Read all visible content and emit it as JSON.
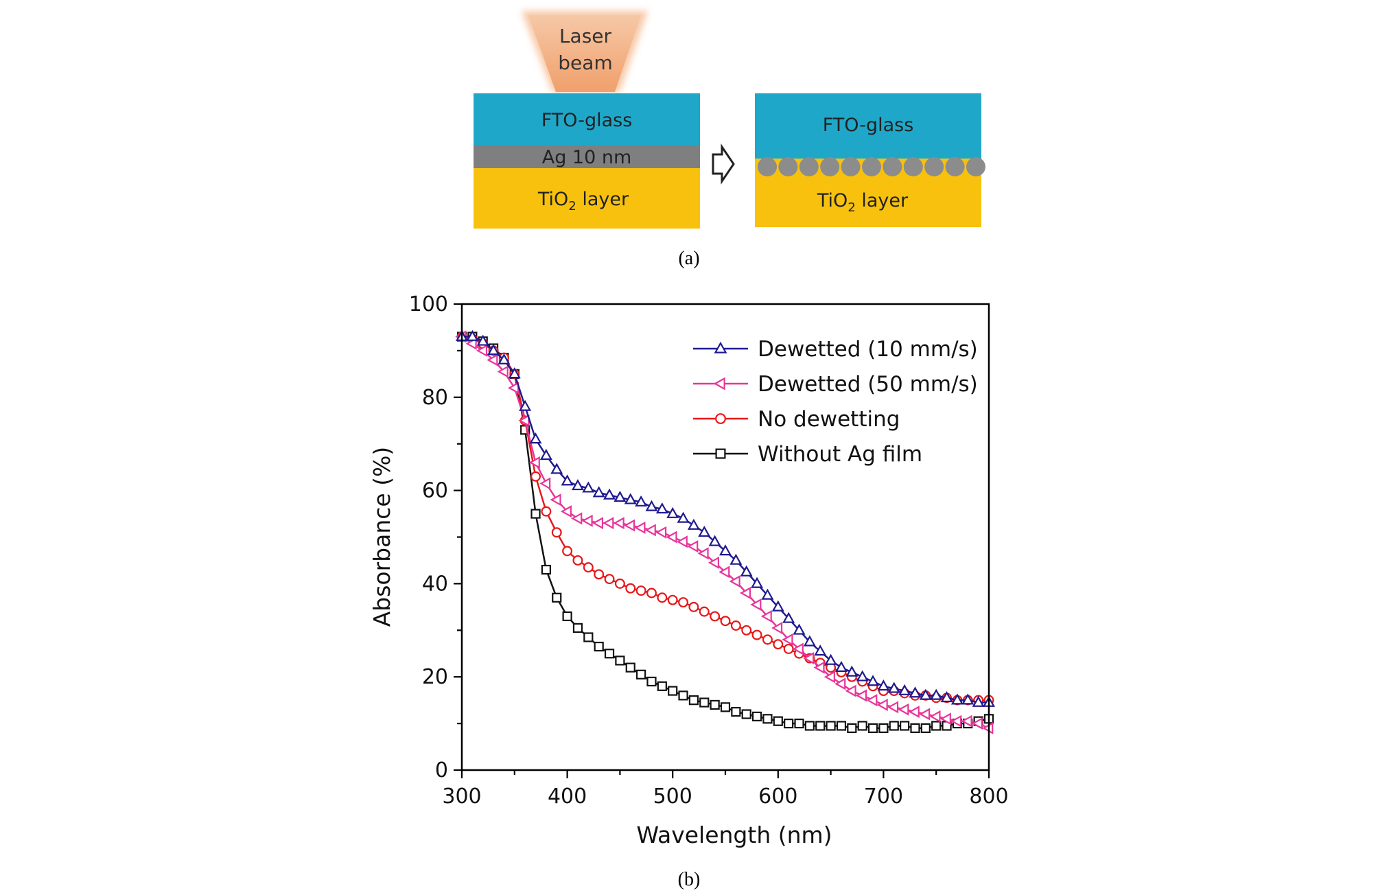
{
  "diagram": {
    "laser_label_line1": "Laser",
    "laser_label_line2": "beam",
    "before": {
      "fto_label": "FTO-glass",
      "ag_label": "Ag 10 nm",
      "tio2_label_main": "TiO",
      "tio2_label_sub": "2",
      "tio2_label_rest": " layer"
    },
    "after": {
      "fto_label": "FTO-glass",
      "tio2_label_main": "TiO",
      "tio2_label_sub": "2",
      "tio2_label_rest": " layer"
    },
    "caption": "(a)",
    "colors": {
      "fto": "#1fa7c9",
      "ag": "#7f7f7f",
      "tio2": "#f7c10d",
      "laser": "#f2a878",
      "particle": "#8c8c8c"
    }
  },
  "chart_data": {
    "type": "line",
    "title": "",
    "caption": "(b)",
    "xlabel": "Wavelength (nm)",
    "ylabel": "Absorbance (%)",
    "xlim": [
      300,
      800
    ],
    "ylim": [
      0,
      100
    ],
    "xticks": [
      300,
      400,
      500,
      600,
      700,
      800
    ],
    "yticks": [
      0,
      20,
      40,
      60,
      80,
      100
    ],
    "grid": false,
    "legend_position": "top-right",
    "x": [
      300,
      310,
      320,
      330,
      340,
      350,
      360,
      370,
      380,
      390,
      400,
      410,
      420,
      430,
      440,
      450,
      460,
      470,
      480,
      490,
      500,
      510,
      520,
      530,
      540,
      550,
      560,
      570,
      580,
      590,
      600,
      610,
      620,
      630,
      640,
      650,
      660,
      670,
      680,
      690,
      700,
      710,
      720,
      730,
      740,
      750,
      760,
      770,
      780,
      790,
      800
    ],
    "series": [
      {
        "name": "Dewetted (10 mm/s)",
        "color": "#1f1a8f",
        "marker": "triangle-up",
        "values": [
          93,
          93,
          92,
          90,
          88,
          85,
          78,
          71,
          67.5,
          64.5,
          62,
          61,
          60.5,
          59.5,
          59,
          58.5,
          58,
          57.5,
          56.5,
          56,
          55,
          54,
          52.5,
          51,
          49,
          47,
          45,
          42.5,
          40,
          37.5,
          35,
          32.5,
          30,
          27.5,
          25.5,
          23.5,
          22,
          21,
          20,
          19,
          18,
          17.5,
          17,
          16.5,
          16,
          16,
          15.5,
          15,
          15,
          14.5,
          14.5
        ]
      },
      {
        "name": "Dewetted (50 mm/s)",
        "color": "#e8359a",
        "marker": "triangle-left",
        "values": [
          93,
          91.5,
          90,
          88,
          85.5,
          82,
          75,
          66,
          61.5,
          58,
          55.5,
          54,
          53.5,
          53,
          53,
          53,
          52.5,
          52,
          51.5,
          51,
          50,
          49,
          48,
          46.5,
          44.5,
          42.5,
          40.5,
          38,
          35.5,
          33,
          30.5,
          28,
          26,
          24,
          22,
          20,
          18.5,
          17,
          16,
          15,
          14,
          13.5,
          13,
          12.5,
          12,
          11.5,
          11,
          10.5,
          10.5,
          10,
          9
        ]
      },
      {
        "name": "No dewetting",
        "color": "#e8181a",
        "marker": "circle",
        "values": [
          93,
          92.5,
          91.5,
          90,
          88.5,
          85,
          75,
          63,
          55.5,
          51,
          47,
          45,
          43.5,
          42,
          41,
          40,
          39,
          38.5,
          38,
          37,
          36.5,
          36,
          35,
          34,
          33,
          32,
          31,
          30,
          29,
          28,
          27,
          26,
          25,
          24,
          23,
          22,
          21,
          20,
          19,
          18,
          17,
          17,
          16.5,
          16,
          16,
          15.5,
          15.5,
          15,
          15,
          15,
          15
        ]
      },
      {
        "name": "Without Ag film",
        "color": "#111111",
        "marker": "square",
        "values": [
          93,
          93,
          92,
          90.5,
          88.5,
          85,
          73,
          55,
          43,
          37,
          33,
          30.5,
          28.5,
          26.5,
          25,
          23.5,
          22,
          20.5,
          19,
          18,
          17,
          16,
          15,
          14.5,
          14,
          13.5,
          12.5,
          12,
          11.5,
          11,
          10.5,
          10,
          10,
          9.5,
          9.5,
          9.5,
          9.5,
          9,
          9.5,
          9,
          9,
          9.5,
          9.5,
          9,
          9,
          9.5,
          9.5,
          10,
          10,
          10.5,
          11
        ]
      }
    ]
  }
}
